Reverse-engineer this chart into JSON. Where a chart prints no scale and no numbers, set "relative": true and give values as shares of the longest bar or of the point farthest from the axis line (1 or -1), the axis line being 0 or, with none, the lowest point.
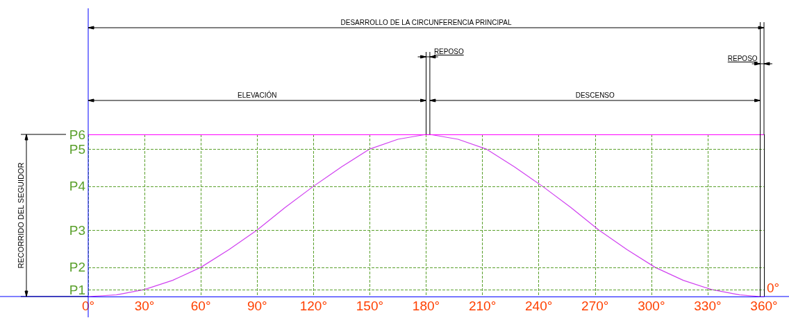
{
  "chart_data": {
    "type": "line",
    "relative": true,
    "annotations": [
      "DESARROLLO DE LA CIRCUNFERENCIA PRINCIPAL",
      "REPOSO",
      "ELEVACIÓN",
      "DESCENSO",
      "REPOSO",
      "0°",
      "RECORRIDO DEL SEGUIDOR"
    ],
    "x": [
      0,
      15,
      30,
      45,
      60,
      75,
      90,
      105,
      120,
      135,
      150,
      165,
      180,
      182,
      197,
      212,
      227,
      242,
      257,
      272,
      287,
      302,
      317,
      332,
      347,
      358,
      360
    ],
    "series": [
      {
        "color": "#d040f0",
        "values": [
          0,
          0.01,
          0.043,
          0.1,
          0.18,
          0.29,
          0.41,
          0.55,
          0.68,
          0.8,
          0.91,
          0.97,
          1,
          1,
          0.97,
          0.91,
          0.8,
          0.68,
          0.55,
          0.41,
          0.29,
          0.18,
          0.1,
          0.043,
          0.01,
          0,
          0
        ]
      }
    ],
    "xlim": [
      0,
      360
    ],
    "xticks": [
      {
        "value": 0,
        "label": "0°"
      },
      {
        "value": 30,
        "label": "30°"
      },
      {
        "value": 60,
        "label": "60°"
      },
      {
        "value": 90,
        "label": "90°"
      },
      {
        "value": 120,
        "label": "120°"
      },
      {
        "value": 150,
        "label": "150°"
      },
      {
        "value": 180,
        "label": "180°"
      },
      {
        "value": 210,
        "label": "210°"
      },
      {
        "value": 240,
        "label": "240°"
      },
      {
        "value": 270,
        "label": "270°"
      },
      {
        "value": 300,
        "label": "300°"
      },
      {
        "value": 330,
        "label": "330°"
      },
      {
        "value": 360,
        "label": "360°"
      }
    ],
    "grid": "x",
    "marker": "none",
    "line_style": "solid",
    "ref_lines": [
      {
        "axis": "y",
        "value": 0.043,
        "label": "P1",
        "color": "#5aa02c",
        "line_style": "dashed"
      },
      {
        "axis": "y",
        "value": 0.18,
        "label": "P2",
        "color": "#5aa02c",
        "line_style": "dashed"
      },
      {
        "axis": "y",
        "value": 0.41,
        "label": "P3",
        "color": "#5aa02c",
        "line_style": "dashed"
      },
      {
        "axis": "y",
        "value": 0.68,
        "label": "P4",
        "color": "#5aa02c",
        "line_style": "dashed"
      },
      {
        "axis": "y",
        "value": 0.91,
        "label": "P5",
        "color": "#5aa02c",
        "line_style": "dashed"
      },
      {
        "axis": "y",
        "value": 1,
        "label": "P6",
        "color": "#ff00ff",
        "line_style": "solid"
      },
      {
        "axis": "x",
        "value": 358,
        "color": "#000000",
        "line_style": "solid"
      },
      {
        "axis": "x",
        "value": 360,
        "color": "#000000",
        "line_style": "solid"
      }
    ]
  }
}
